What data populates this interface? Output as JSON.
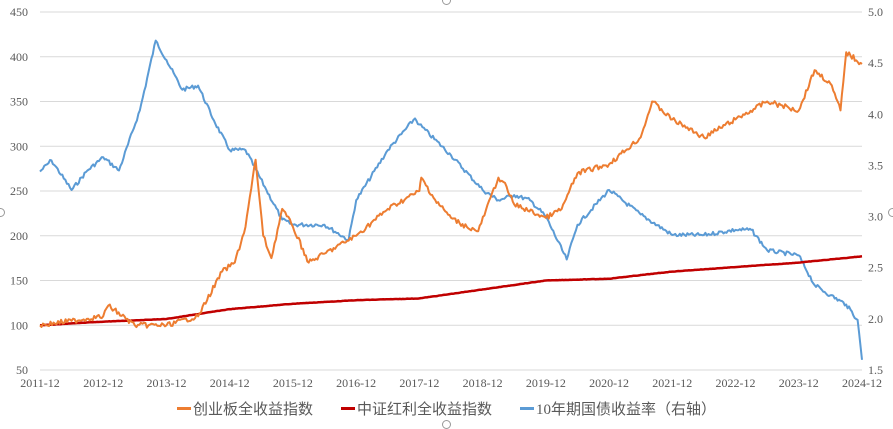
{
  "chart_data": {
    "type": "line",
    "title": "",
    "x_tick_labels": [
      "2011-12",
      "2012-12",
      "2013-12",
      "2014-12",
      "2015-12",
      "2016-12",
      "2017-12",
      "2018-12",
      "2019-12",
      "2020-12",
      "2021-12",
      "2022-12",
      "2023-12",
      "2024-12"
    ],
    "y_left": {
      "min": 50,
      "max": 450,
      "ticks": [
        "50",
        "100",
        "150",
        "200",
        "250",
        "300",
        "350",
        "400",
        "450"
      ]
    },
    "y_right": {
      "min": 1.5,
      "max": 5.0,
      "ticks": [
        "1.5",
        "2.0",
        "2.5",
        "3.0",
        "3.5",
        "4.0",
        "4.5",
        "5.0"
      ]
    },
    "grid": true,
    "legend_position": "bottom",
    "series": [
      {
        "name": "创业板全收益指数",
        "axis": "left",
        "color": "#ED7D31",
        "points": [
          [
            2011.92,
            100
          ],
          [
            2012.42,
            105
          ],
          [
            2012.92,
            110
          ],
          [
            2013.0,
            122
          ],
          [
            2013.42,
            100
          ],
          [
            2013.92,
            100
          ],
          [
            2014.42,
            110
          ],
          [
            2014.8,
            160
          ],
          [
            2015.0,
            170
          ],
          [
            2015.17,
            210
          ],
          [
            2015.33,
            285
          ],
          [
            2015.45,
            200
          ],
          [
            2015.58,
            175
          ],
          [
            2015.75,
            230
          ],
          [
            2015.92,
            210
          ],
          [
            2016.17,
            170
          ],
          [
            2016.42,
            180
          ],
          [
            2016.92,
            200
          ],
          [
            2017.42,
            230
          ],
          [
            2017.92,
            250
          ],
          [
            2017.95,
            265
          ],
          [
            2018.17,
            240
          ],
          [
            2018.42,
            220
          ],
          [
            2018.67,
            210
          ],
          [
            2018.85,
            205
          ],
          [
            2019.17,
            265
          ],
          [
            2019.25,
            260
          ],
          [
            2019.42,
            235
          ],
          [
            2019.92,
            220
          ],
          [
            2020.17,
            230
          ],
          [
            2020.42,
            270
          ],
          [
            2020.92,
            280
          ],
          [
            2021.42,
            310
          ],
          [
            2021.6,
            350
          ],
          [
            2021.92,
            330
          ],
          [
            2022.42,
            310
          ],
          [
            2022.92,
            330
          ],
          [
            2023.42,
            350
          ],
          [
            2023.92,
            340
          ],
          [
            2024.17,
            385
          ],
          [
            2024.42,
            370
          ],
          [
            2024.58,
            340
          ],
          [
            2024.67,
            405
          ],
          [
            2024.92,
            392
          ]
        ]
      },
      {
        "name": "中证红利全收益指数",
        "axis": "left",
        "color": "#C00000",
        "points": [
          [
            2011.92,
            100
          ],
          [
            2012.92,
            104
          ],
          [
            2013.92,
            107
          ],
          [
            2014.92,
            118
          ],
          [
            2015.92,
            124
          ],
          [
            2016.92,
            128
          ],
          [
            2017.92,
            130
          ],
          [
            2018.92,
            140
          ],
          [
            2019.92,
            150
          ],
          [
            2020.92,
            152
          ],
          [
            2021.92,
            160
          ],
          [
            2022.92,
            165
          ],
          [
            2023.92,
            170
          ],
          [
            2024.92,
            177
          ]
        ]
      },
      {
        "name": "10年期国债收益率（右轴）",
        "axis": "right",
        "color": "#5B9BD5",
        "points": [
          [
            2011.92,
            3.44
          ],
          [
            2012.1,
            3.55
          ],
          [
            2012.42,
            3.26
          ],
          [
            2012.67,
            3.45
          ],
          [
            2012.92,
            3.58
          ],
          [
            2013.17,
            3.45
          ],
          [
            2013.5,
            4.04
          ],
          [
            2013.75,
            4.72
          ],
          [
            2013.92,
            4.53
          ],
          [
            2014.17,
            4.24
          ],
          [
            2014.42,
            4.28
          ],
          [
            2014.67,
            3.94
          ],
          [
            2014.92,
            3.65
          ],
          [
            2015.17,
            3.65
          ],
          [
            2015.5,
            3.26
          ],
          [
            2015.75,
            2.97
          ],
          [
            2015.92,
            2.92
          ],
          [
            2016.42,
            2.92
          ],
          [
            2016.8,
            2.77
          ],
          [
            2016.92,
            3.16
          ],
          [
            2017.42,
            3.65
          ],
          [
            2017.85,
            3.96
          ],
          [
            2017.92,
            3.9
          ],
          [
            2018.42,
            3.6
          ],
          [
            2018.92,
            3.26
          ],
          [
            2019.17,
            3.16
          ],
          [
            2019.42,
            3.21
          ],
          [
            2019.67,
            3.16
          ],
          [
            2019.92,
            3.0
          ],
          [
            2020.25,
            2.58
          ],
          [
            2020.42,
            2.92
          ],
          [
            2020.92,
            3.26
          ],
          [
            2021.42,
            3.02
          ],
          [
            2021.92,
            2.82
          ],
          [
            2022.42,
            2.82
          ],
          [
            2022.92,
            2.87
          ],
          [
            2023.17,
            2.87
          ],
          [
            2023.42,
            2.67
          ],
          [
            2023.92,
            2.62
          ],
          [
            2024.17,
            2.33
          ],
          [
            2024.42,
            2.23
          ],
          [
            2024.67,
            2.14
          ],
          [
            2024.85,
            1.99
          ],
          [
            2024.92,
            1.6
          ]
        ]
      }
    ]
  }
}
